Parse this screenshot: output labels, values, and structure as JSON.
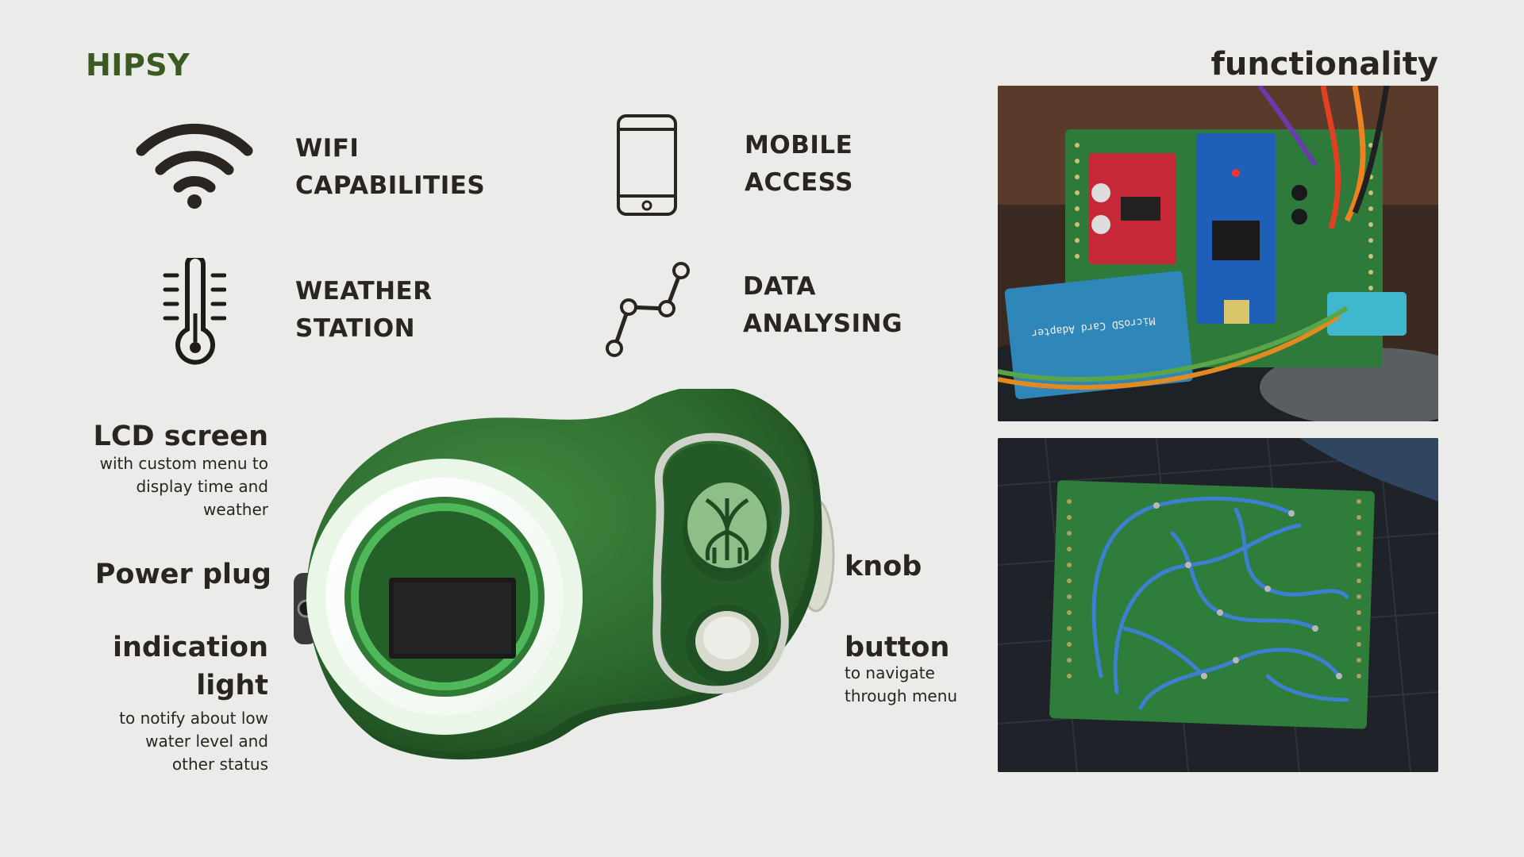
{
  "brand": "HIPSY",
  "section_title": "functionality",
  "features": [
    {
      "line1": "WIFI",
      "line2": "CAPABILITIES",
      "icon": "wifi-icon"
    },
    {
      "line1": "MOBILE",
      "line2": "ACCESS",
      "icon": "smartphone-icon"
    },
    {
      "line1": "WEATHER",
      "line2": "STATION",
      "icon": "thermometer-icon"
    },
    {
      "line1": "DATA",
      "line2": "ANALYSING",
      "icon": "line-graph-icon"
    }
  ],
  "callouts": {
    "lcd": {
      "title": "LCD screen",
      "desc1": "with custom menu to",
      "desc2": "display time and",
      "desc3": "weather"
    },
    "power": {
      "title": "Power plug"
    },
    "light": {
      "title1": "indication",
      "title2": "light",
      "desc1": "to notify about low",
      "desc2": "water level and",
      "desc3": "other status"
    },
    "knob": {
      "title": "knob"
    },
    "button": {
      "title": "button",
      "desc1": "to navigate",
      "desc2": "through menu"
    }
  },
  "photos": {
    "top_board_text": "MicroSD Card Adapter"
  },
  "colors": {
    "brand_green": "#3b5a22",
    "device_green": "#2d6a2e",
    "text_dark": "#2b2520",
    "background": "#ebebea"
  }
}
